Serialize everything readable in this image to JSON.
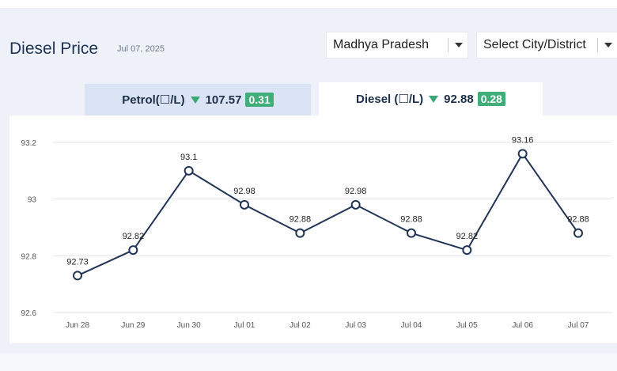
{
  "header": {
    "title": "Diesel Price",
    "date": "Jul 07, 2025"
  },
  "filters": {
    "state": "Madhya Pradesh",
    "city": "Select City/District"
  },
  "tabs": {
    "petrol": {
      "label": "Petrol(☐/L)",
      "price": "107.57",
      "change": "0.31"
    },
    "diesel": {
      "label": "Diesel (☐/L)",
      "price": "92.88",
      "change": "0.28"
    }
  },
  "colors": {
    "line": "#1f3457",
    "down_indicator": "#3aa874",
    "badge": "#3fae79",
    "active_tab": "#ffffff",
    "inactive_tab": "#dbe4f5"
  },
  "chart_data": {
    "type": "line",
    "categories": [
      "Jun 28",
      "Jun 29",
      "Jun 30",
      "Jul 01",
      "Jul 02",
      "Jul 03",
      "Jul 04",
      "Jul 05",
      "Jul 06",
      "Jul 07"
    ],
    "values": [
      92.73,
      92.82,
      93.1,
      92.98,
      92.88,
      92.98,
      92.88,
      92.82,
      93.16,
      92.88
    ],
    "data_labels": [
      "92.73",
      "92.82",
      "93.1",
      "92.98",
      "92.88",
      "92.98",
      "92.88",
      "92.82",
      "93.16",
      "92.88"
    ],
    "y_ticks": [
      "93.2",
      "93",
      "92.8",
      "92.6"
    ],
    "ylim": [
      92.6,
      93.2
    ],
    "grid": true,
    "legend": "none"
  }
}
